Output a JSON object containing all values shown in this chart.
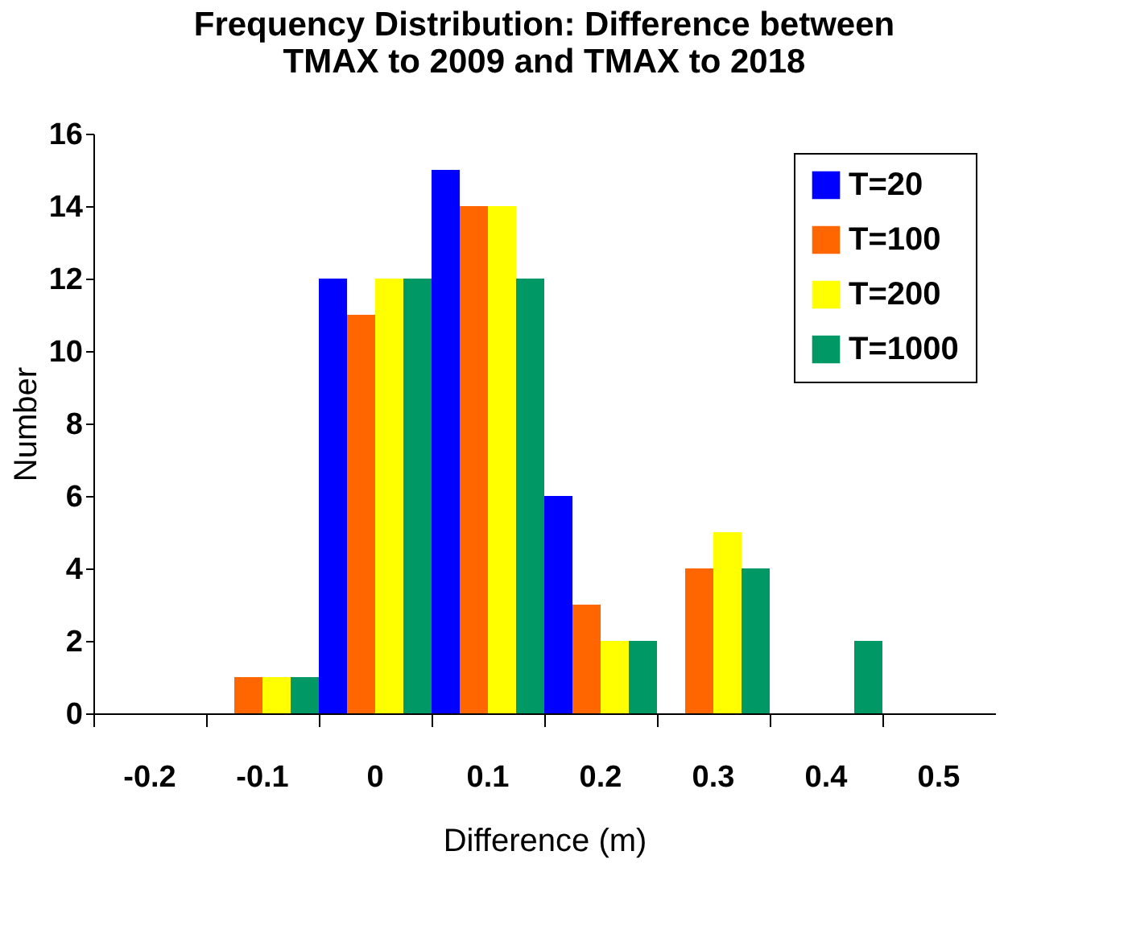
{
  "chart_data": {
    "type": "bar",
    "title": "Frequency Distribution: Difference between\nTMAX to 2009 and TMAX to 2018",
    "xlabel": "Difference (m)",
    "ylabel": "Number",
    "categories": [
      "-0.2",
      "-0.1",
      "0",
      "0.1",
      "0.2",
      "0.3",
      "0.4",
      "0.5"
    ],
    "series": [
      {
        "name": "T=20",
        "color": "#0000ff",
        "values": [
          0,
          0,
          12,
          15,
          6,
          0,
          0,
          0
        ]
      },
      {
        "name": "T=100",
        "color": "#ff6600",
        "values": [
          0,
          1,
          11,
          14,
          3,
          4,
          0,
          0
        ]
      },
      {
        "name": "T=200",
        "color": "#ffff00",
        "values": [
          0,
          1,
          12,
          14,
          2,
          5,
          0,
          0
        ]
      },
      {
        "name": "T=1000",
        "color": "#009966",
        "values": [
          0,
          1,
          12,
          12,
          2,
          4,
          2,
          0
        ]
      }
    ],
    "ylim": [
      0,
      16
    ],
    "yticks": [
      0,
      2,
      4,
      6,
      8,
      10,
      12,
      14,
      16
    ],
    "grid": false,
    "legend": "top right"
  }
}
